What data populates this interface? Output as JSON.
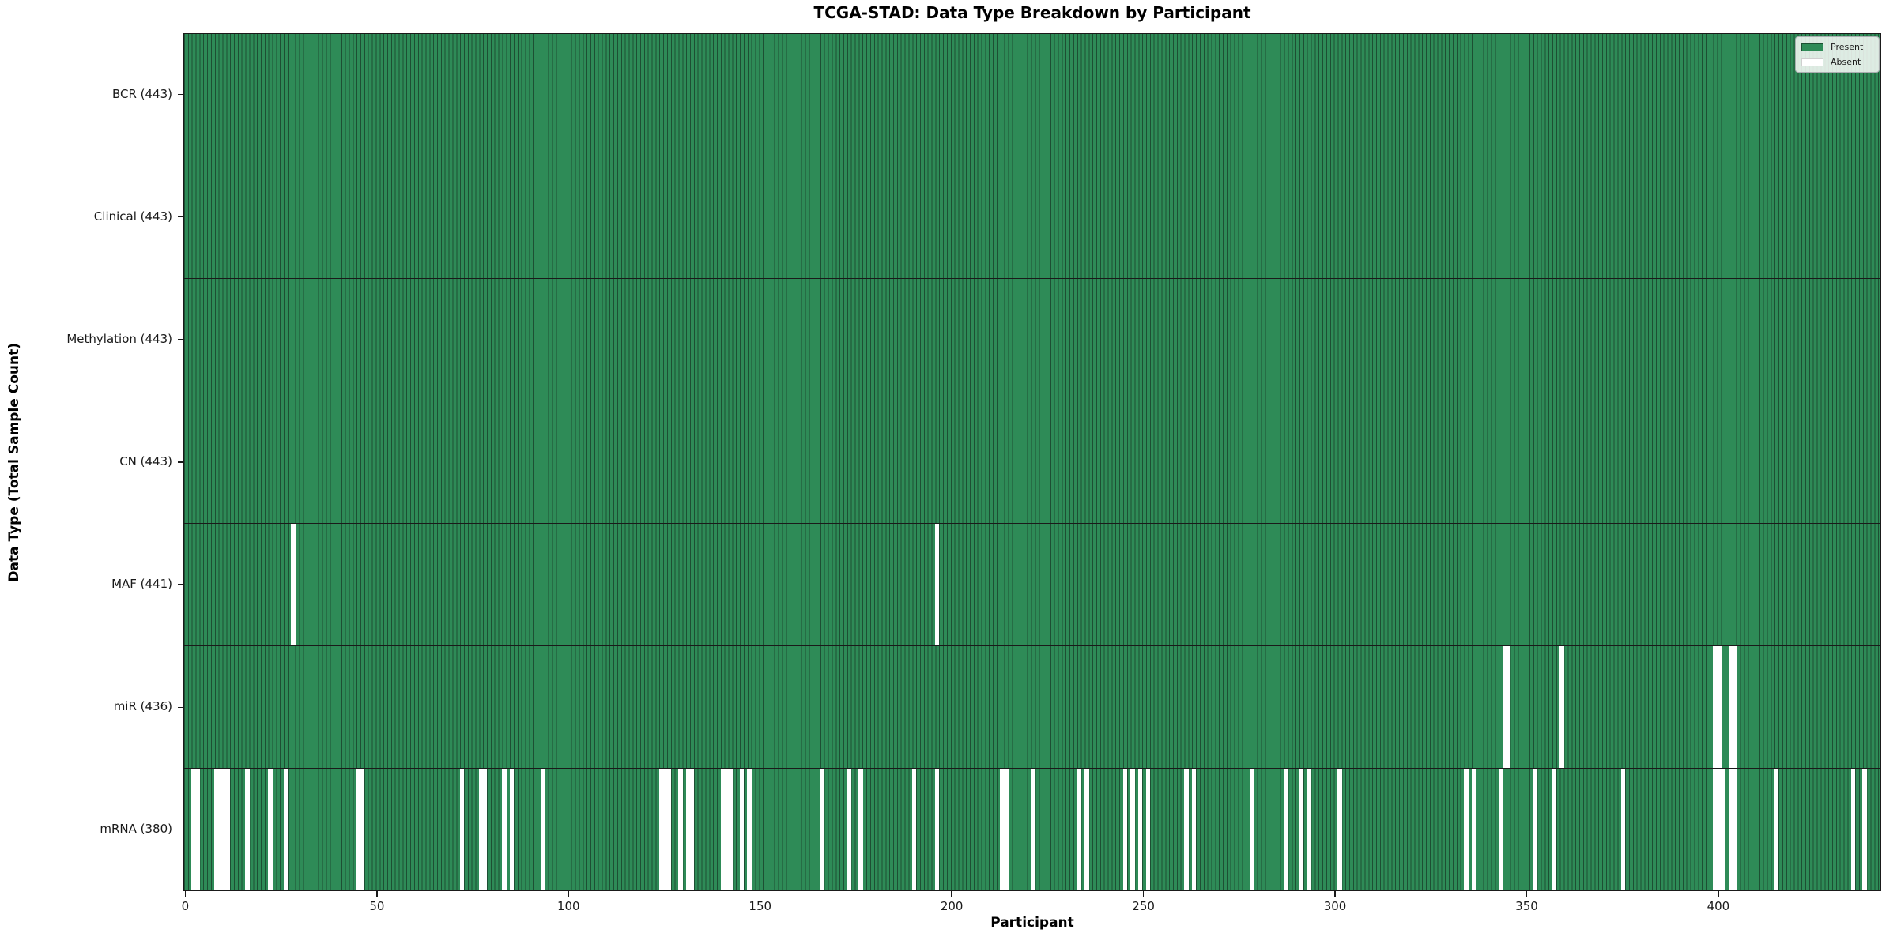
{
  "title": "TCGA-STAD: Data Type Breakdown by Participant",
  "xlabel": "Participant",
  "ylabel": "Data Type (Total Sample Count)",
  "legend": {
    "present_label": "Present",
    "absent_label": "Absent"
  },
  "colors": {
    "present": "#2e8b57",
    "bar_edge": "#1d4f33",
    "absent": "#ffffff",
    "separator": "#1a1a1a"
  },
  "chart_data": {
    "type": "heatmap",
    "title": "TCGA-STAD: Data Type Breakdown by Participant",
    "xlabel": "Participant",
    "ylabel": "Data Type (Total Sample Count)",
    "legend": [
      "Present",
      "Absent"
    ],
    "legend_position": "upper right",
    "n_participants": 443,
    "x_ticks": [
      0,
      50,
      100,
      150,
      200,
      250,
      300,
      350,
      400
    ],
    "x_range": [
      0,
      442
    ],
    "grid": false,
    "rows": [
      {
        "name": "BCR",
        "label": "BCR (443)",
        "total": 443,
        "missing": []
      },
      {
        "name": "Clinical",
        "label": "Clinical (443)",
        "total": 443,
        "missing": []
      },
      {
        "name": "Methylation",
        "label": "Methylation (443)",
        "total": 443,
        "missing": []
      },
      {
        "name": "CN",
        "label": "CN (443)",
        "total": 443,
        "missing": []
      },
      {
        "name": "MAF",
        "label": "MAF (441)",
        "total": 441,
        "missing": [
          28,
          196
        ]
      },
      {
        "name": "miR",
        "label": "miR (436)",
        "total": 436,
        "missing": [
          344,
          345,
          359,
          399,
          400,
          403,
          404
        ]
      },
      {
        "name": "mRNA",
        "label": "mRNA (380)",
        "total": 380,
        "missing": [
          2,
          3,
          8,
          9,
          10,
          11,
          16,
          22,
          26,
          45,
          46,
          72,
          77,
          78,
          83,
          85,
          93,
          124,
          125,
          126,
          129,
          131,
          132,
          140,
          141,
          142,
          145,
          147,
          166,
          173,
          176,
          190,
          196,
          213,
          214,
          221,
          233,
          235,
          245,
          247,
          249,
          251,
          261,
          263,
          278,
          287,
          291,
          293,
          301,
          334,
          336,
          343,
          352,
          357,
          375,
          399,
          400,
          401,
          403,
          404,
          415,
          435,
          438
        ]
      }
    ]
  }
}
